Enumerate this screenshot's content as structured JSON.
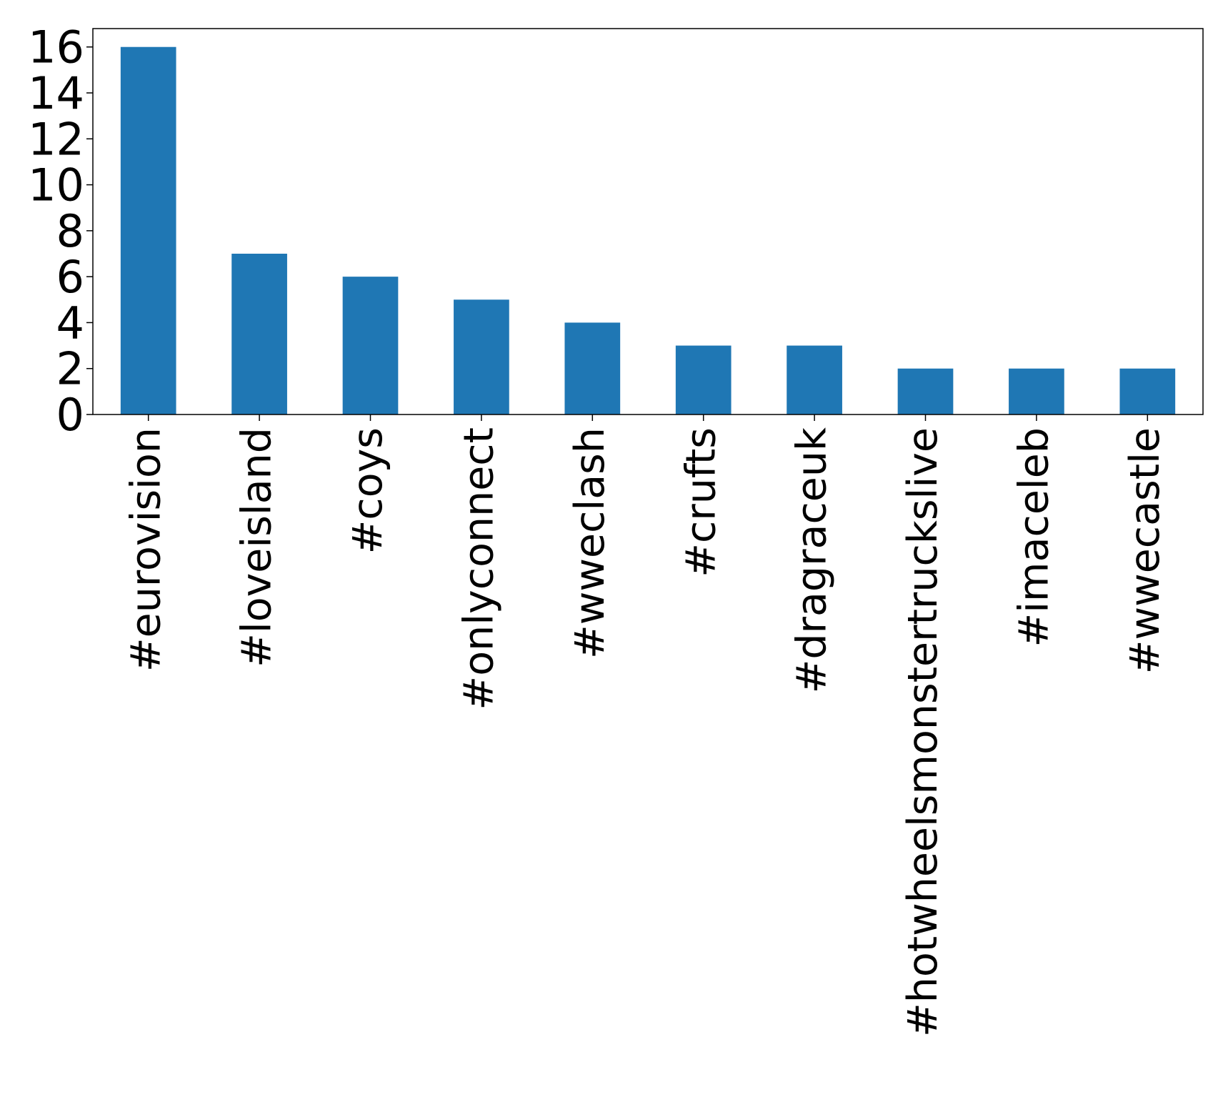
{
  "chart_data": {
    "type": "bar",
    "title": "",
    "xlabel": "",
    "ylabel": "",
    "categories": [
      "#eurovision",
      "#loveisland",
      "#coys",
      "#onlyconnect",
      "#wweclash",
      "#crufts",
      "#dragraceuk",
      "#hotwheelsmonstertruckslive",
      "#imaceleb",
      "#wwecastle"
    ],
    "values": [
      16,
      7,
      6,
      5,
      4,
      3,
      3,
      2,
      2,
      2
    ],
    "ylim": [
      0,
      16.8
    ],
    "yticks": [
      0,
      2,
      4,
      6,
      8,
      10,
      12,
      14,
      16
    ],
    "grid": false,
    "legend": "none",
    "bar_color": "#1f77b4"
  }
}
